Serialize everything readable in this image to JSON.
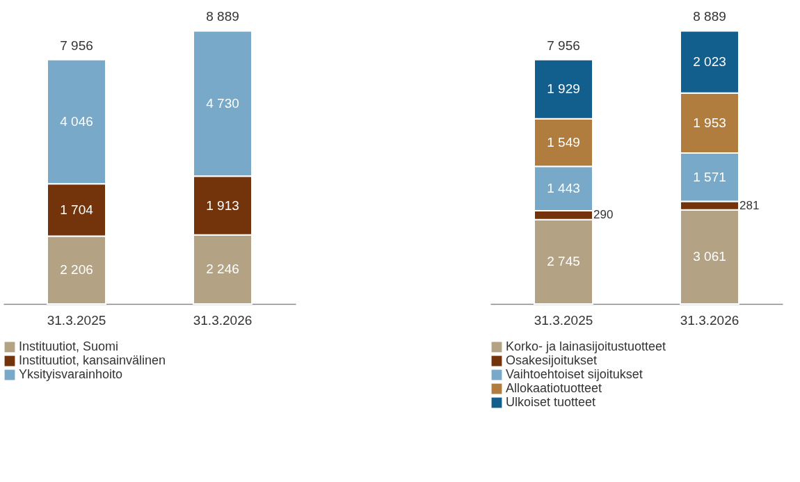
{
  "chart_data": [
    {
      "type": "bar",
      "stacked": true,
      "categories": [
        "31.3.2025",
        "31.3.2026"
      ],
      "legend": "bottom",
      "totals": [
        "7 956",
        "8 889"
      ],
      "series": [
        {
          "name": "Instituutiot, Suomi",
          "color": "#b3a283",
          "values": [
            2206,
            2246
          ],
          "value_labels": [
            "2 206",
            "2 246"
          ]
        },
        {
          "name": "Instituutiot, kansainvälinen",
          "color": "#74340b",
          "values": [
            1704,
            1913
          ],
          "value_labels": [
            "1 704",
            "1 913"
          ]
        },
        {
          "name": "Yksityisvarainhoito",
          "color": "#78a9c8",
          "values": [
            4046,
            4730
          ],
          "value_labels": [
            "4 046",
            "4 730"
          ]
        }
      ]
    },
    {
      "type": "bar",
      "stacked": true,
      "categories": [
        "31.3.2025",
        "31.3.2026"
      ],
      "legend": "bottom",
      "totals": [
        "7 956",
        "8 889"
      ],
      "series": [
        {
          "name": "Korko- ja lainasijoitustuotteet",
          "color": "#b3a283",
          "values": [
            2745,
            3061
          ],
          "value_labels": [
            "2 745",
            "3 061"
          ]
        },
        {
          "name": "Osakesijoitukset",
          "color": "#74340b",
          "values": [
            290,
            281
          ],
          "value_labels": [
            "290",
            "281"
          ]
        },
        {
          "name": "Vaihtoehtoiset sijoitukset",
          "color": "#78a9c8",
          "values": [
            1443,
            1571
          ],
          "value_labels": [
            "1 443",
            "1 571"
          ]
        },
        {
          "name": "Allokaatiotuotteet",
          "color": "#b07d3f",
          "values": [
            1549,
            1953
          ],
          "value_labels": [
            "1 549",
            "1 953"
          ]
        },
        {
          "name": "Ulkoiset tuotteet",
          "color": "#125e8c",
          "values": [
            1929,
            2023
          ],
          "value_labels": [
            "1 929",
            "2 023"
          ]
        }
      ]
    }
  ]
}
